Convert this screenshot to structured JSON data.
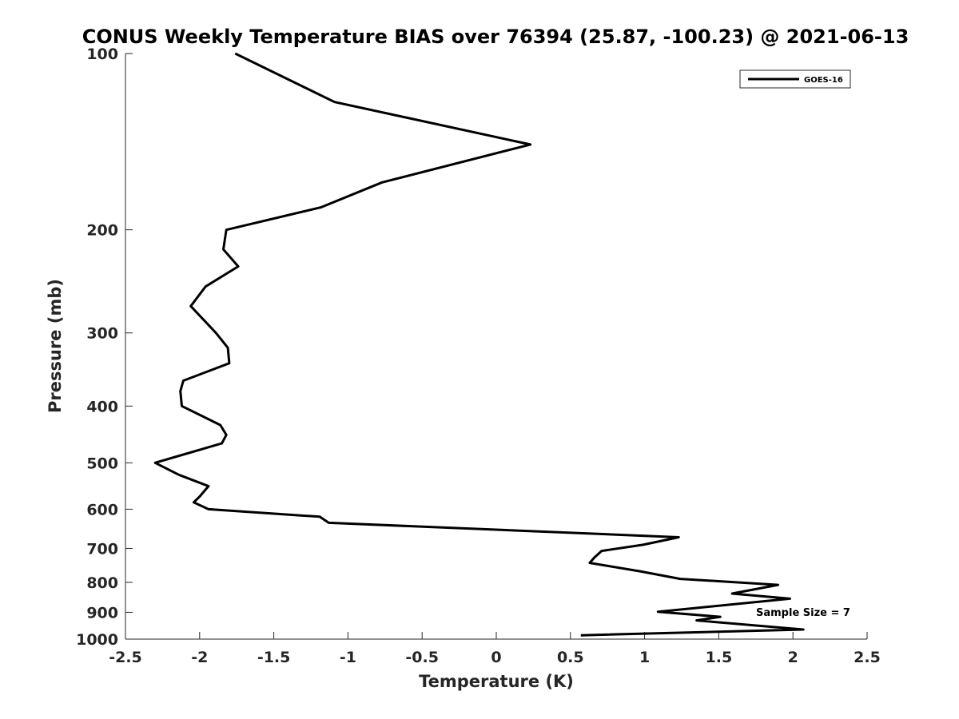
{
  "chart_data": {
    "type": "line",
    "title": "CONUS Weekly Temperature BIAS over 76394 (25.87, -100.23) @ 2021-06-13",
    "xlabel": "Temperature (K)",
    "ylabel": "Pressure (mb)",
    "xlim": [
      -2.5,
      2.5
    ],
    "ylim": [
      100,
      1000
    ],
    "yscale": "log",
    "yreversed": true,
    "x_ticks": [
      -2.5,
      -2,
      -1.5,
      -1,
      -0.5,
      0,
      0.5,
      1,
      1.5,
      2,
      2.5
    ],
    "x_tick_labels": [
      "-2.5",
      "-2",
      "-1.5",
      "-1",
      "-0.5",
      "0",
      "0.5",
      "1",
      "1.5",
      "2",
      "2.5"
    ],
    "y_ticks": [
      100,
      200,
      300,
      400,
      500,
      600,
      700,
      800,
      900,
      1000
    ],
    "y_tick_labels": [
      "100",
      "200",
      "300",
      "400",
      "500",
      "600",
      "700",
      "800",
      "900",
      "1000"
    ],
    "grid": false,
    "legend": {
      "placement": "top-right",
      "entries": [
        "GOES-16"
      ]
    },
    "annotation": "Sample Size = 7",
    "series": [
      {
        "name": "GOES-16",
        "color": "#000000",
        "points": [
          {
            "x": -1.76,
            "y": 100
          },
          {
            "x": -1.09,
            "y": 121
          },
          {
            "x": 0.23,
            "y": 143
          },
          {
            "x": -0.77,
            "y": 166
          },
          {
            "x": -1.18,
            "y": 183
          },
          {
            "x": -1.82,
            "y": 200
          },
          {
            "x": -1.84,
            "y": 216
          },
          {
            "x": -1.74,
            "y": 231
          },
          {
            "x": -1.96,
            "y": 250
          },
          {
            "x": -2.06,
            "y": 270
          },
          {
            "x": -1.89,
            "y": 300
          },
          {
            "x": -1.81,
            "y": 318
          },
          {
            "x": -1.8,
            "y": 338
          },
          {
            "x": -2.11,
            "y": 362
          },
          {
            "x": -2.13,
            "y": 377
          },
          {
            "x": -2.12,
            "y": 400
          },
          {
            "x": -1.86,
            "y": 431
          },
          {
            "x": -1.82,
            "y": 448
          },
          {
            "x": -1.85,
            "y": 463
          },
          {
            "x": -2.11,
            "y": 484
          },
          {
            "x": -2.3,
            "y": 500
          },
          {
            "x": -2.14,
            "y": 524
          },
          {
            "x": -1.94,
            "y": 548
          },
          {
            "x": -2.0,
            "y": 571
          },
          {
            "x": -2.04,
            "y": 584
          },
          {
            "x": -1.94,
            "y": 600
          },
          {
            "x": -1.19,
            "y": 618
          },
          {
            "x": -1.13,
            "y": 633
          },
          {
            "x": 1.23,
            "y": 670
          },
          {
            "x": 0.99,
            "y": 690
          },
          {
            "x": 0.71,
            "y": 707
          },
          {
            "x": 0.66,
            "y": 726
          },
          {
            "x": 0.63,
            "y": 741
          },
          {
            "x": 0.97,
            "y": 766
          },
          {
            "x": 1.24,
            "y": 789
          },
          {
            "x": 1.9,
            "y": 808
          },
          {
            "x": 1.59,
            "y": 836
          },
          {
            "x": 1.98,
            "y": 853
          },
          {
            "x": 1.09,
            "y": 898
          },
          {
            "x": 1.51,
            "y": 916
          },
          {
            "x": 1.35,
            "y": 929
          },
          {
            "x": 2.07,
            "y": 963
          },
          {
            "x": 0.57,
            "y": 985
          }
        ]
      }
    ]
  }
}
